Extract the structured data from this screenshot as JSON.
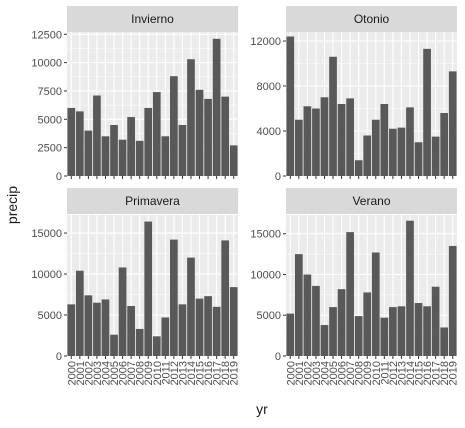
{
  "chart_data": {
    "type": "bar",
    "xlabel": "yr",
    "ylabel": "precip",
    "x": [
      "2000",
      "2001",
      "2002",
      "2003",
      "2004",
      "2005",
      "2006",
      "2007",
      "2008",
      "2009",
      "2010",
      "2011",
      "2012",
      "2013",
      "2014",
      "2015",
      "2016",
      "2017",
      "2018",
      "2019"
    ],
    "grid": true,
    "legend": "none",
    "colors": {
      "bar": "#595959",
      "panel_bg": "#ebebeb",
      "grid": "#ffffff",
      "strip_bg": "#d9d9d9",
      "axis_text": "#4d4d4d"
    },
    "panels": [
      {
        "title": "Invierno",
        "ylim": [
          0,
          12700
        ],
        "yticks": [
          0,
          2500,
          5000,
          7500,
          10000,
          12500
        ],
        "values": [
          6000,
          5700,
          4000,
          7100,
          3500,
          4500,
          3200,
          5200,
          3100,
          6000,
          7400,
          3500,
          8800,
          4500,
          10300,
          7600,
          6800,
          12100,
          7000,
          2700
        ]
      },
      {
        "title": "Otonio",
        "ylim": [
          0,
          12800
        ],
        "yticks": [
          0,
          4000,
          8000,
          12000
        ],
        "values": [
          12400,
          5000,
          6200,
          6000,
          7000,
          10600,
          6400,
          6900,
          1400,
          3600,
          5000,
          6400,
          4200,
          4300,
          6100,
          3000,
          11300,
          3500,
          5600,
          9300
        ]
      },
      {
        "title": "Primavera",
        "ylim": [
          0,
          17200
        ],
        "yticks": [
          0,
          5000,
          10000,
          15000
        ],
        "values": [
          6300,
          10400,
          7400,
          6500,
          6900,
          2600,
          10800,
          6100,
          3300,
          16400,
          2400,
          4700,
          14200,
          6300,
          12000,
          7000,
          7300,
          6000,
          14100,
          8400
        ]
      },
      {
        "title": "Verano",
        "ylim": [
          0,
          17300
        ],
        "yticks": [
          0,
          5000,
          10000,
          15000
        ],
        "values": [
          5200,
          12500,
          10000,
          8600,
          3800,
          6000,
          8200,
          15200,
          4900,
          7800,
          12700,
          4700,
          6000,
          6100,
          16600,
          6500,
          6100,
          8500,
          3500,
          13500
        ]
      }
    ]
  }
}
